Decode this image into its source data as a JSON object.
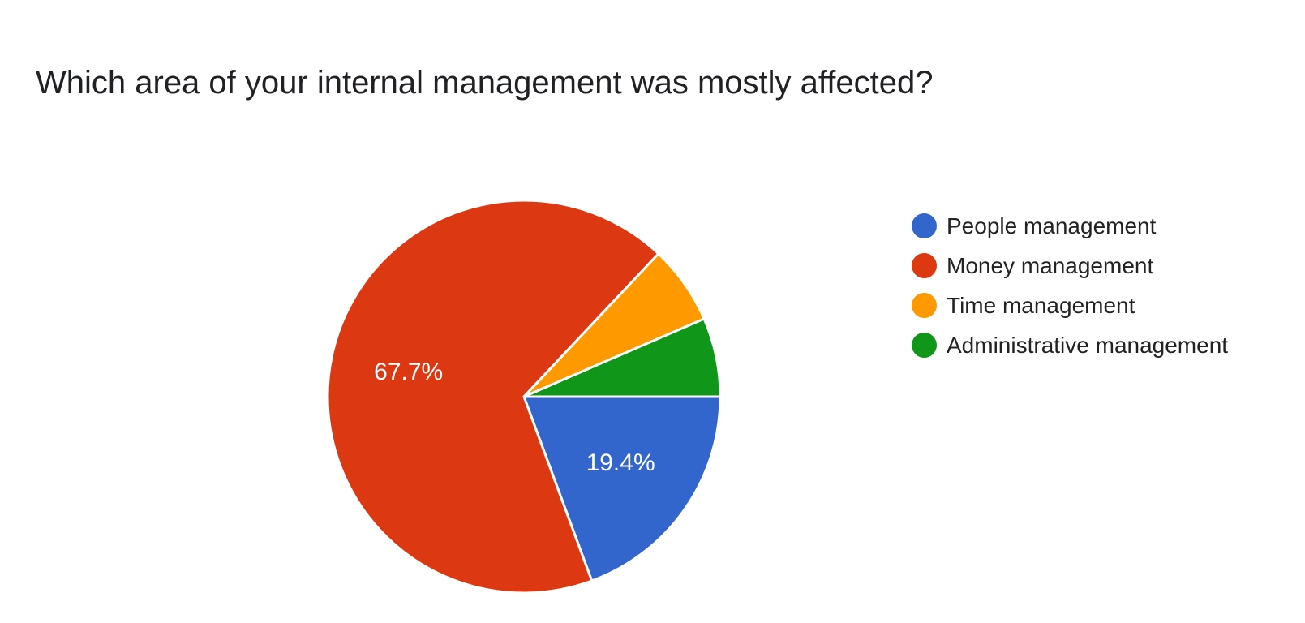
{
  "chart_data": {
    "type": "pie",
    "title": "Which area of your internal management was mostly affected?",
    "slices": [
      {
        "label": "People management",
        "value": 19.4,
        "color": "#3366cc",
        "display_label": "19.4%"
      },
      {
        "label": "Money management",
        "value": 67.7,
        "color": "#dc3912",
        "display_label": "67.7%"
      },
      {
        "label": "Time management",
        "value": 6.5,
        "color": "#ff9900",
        "display_label": ""
      },
      {
        "label": "Administrative management",
        "value": 6.5,
        "color": "#109618",
        "display_label": ""
      }
    ],
    "legend_position": "right"
  }
}
